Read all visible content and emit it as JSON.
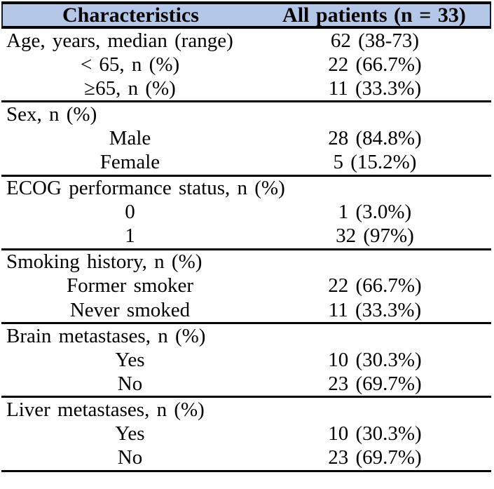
{
  "colors": {
    "header_bg": "#b4c7e7",
    "border": "#000000",
    "text": "#000000",
    "page_bg": "#ffffff"
  },
  "table": {
    "header": {
      "characteristics_label": "Characteristics",
      "patients_label": "All patients (n = 33)"
    },
    "sections": [
      {
        "rows": [
          {
            "label": "Age, years, median (range)",
            "value": "62 (38-73)",
            "level": 0
          },
          {
            "label": "< 65, n (%)",
            "value": "22 (66.7%)",
            "level": 1
          },
          {
            "label": "≥65, n (%)",
            "value": "11 (33.3%)",
            "level": 1
          }
        ]
      },
      {
        "rows": [
          {
            "label": "Sex, n (%)",
            "value": "",
            "level": 0
          },
          {
            "label": "Male",
            "value": "28 (84.8%)",
            "level": 1
          },
          {
            "label": "Female",
            "value": "5 (15.2%)",
            "level": 1
          }
        ]
      },
      {
        "rows": [
          {
            "label": "ECOG performance status, n (%)",
            "value": "",
            "level": 0
          },
          {
            "label": "0",
            "value": "1 (3.0%)",
            "level": 1
          },
          {
            "label": "1",
            "value": "32 (97%)",
            "level": 1
          }
        ]
      },
      {
        "rows": [
          {
            "label": "Smoking history, n (%)",
            "value": "",
            "level": 0
          },
          {
            "label": "Former smoker",
            "value": "22 (66.7%)",
            "level": 1
          },
          {
            "label": "Never smoked",
            "value": "11 (33.3%)",
            "level": 1
          }
        ]
      },
      {
        "rows": [
          {
            "label": "Brain metastases, n (%)",
            "value": "",
            "level": 0
          },
          {
            "label": "Yes",
            "value": "10 (30.3%)",
            "level": 1
          },
          {
            "label": "No",
            "value": "23 (69.7%)",
            "level": 1
          }
        ]
      },
      {
        "rows": [
          {
            "label": "Liver metastases, n (%)",
            "value": "",
            "level": 0
          },
          {
            "label": "Yes",
            "value": "10 (30.3%)",
            "level": 1
          },
          {
            "label": "No",
            "value": "23 (69.7%)",
            "level": 1
          }
        ]
      }
    ]
  }
}
